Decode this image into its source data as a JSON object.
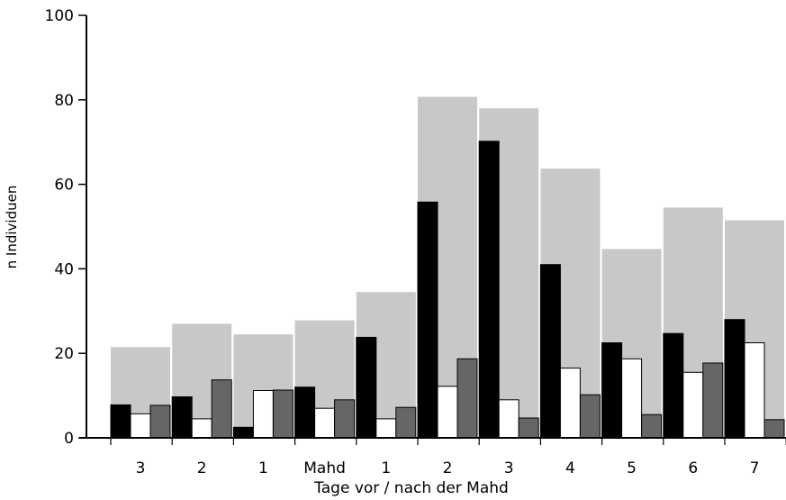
{
  "chart_data": {
    "type": "bar",
    "title": "",
    "xlabel": "Tage vor / nach der Mahd",
    "ylabel": "n Individuen",
    "ylim": [
      0,
      100
    ],
    "yticks": [
      0,
      20,
      40,
      60,
      80,
      100
    ],
    "grid": false,
    "categories": [
      "3",
      "2",
      "1",
      "Mahd",
      "1",
      "2",
      "3",
      "4",
      "5",
      "6",
      "7"
    ],
    "series": [
      {
        "color": "#c8c8c8",
        "values": [
          21.5,
          27,
          24.5,
          27.8,
          34.5,
          80.7,
          78,
          63.7,
          44.7,
          54.5,
          51.5
        ]
      },
      {
        "color": "#000000",
        "values": [
          7.8,
          9.7,
          2.5,
          12,
          23.8,
          55.8,
          70.2,
          41,
          22.5,
          24.7,
          28
        ]
      },
      {
        "color": "#ffffff",
        "values": [
          5.7,
          4.5,
          11.2,
          7,
          4.5,
          12.2,
          9,
          16.5,
          18.7,
          15.5,
          22.5
        ]
      },
      {
        "color": "#666666",
        "values": [
          7.7,
          13.7,
          11.3,
          9,
          7.2,
          18.7,
          4.7,
          10.2,
          5.5,
          17.7,
          4.3
        ]
      }
    ]
  }
}
